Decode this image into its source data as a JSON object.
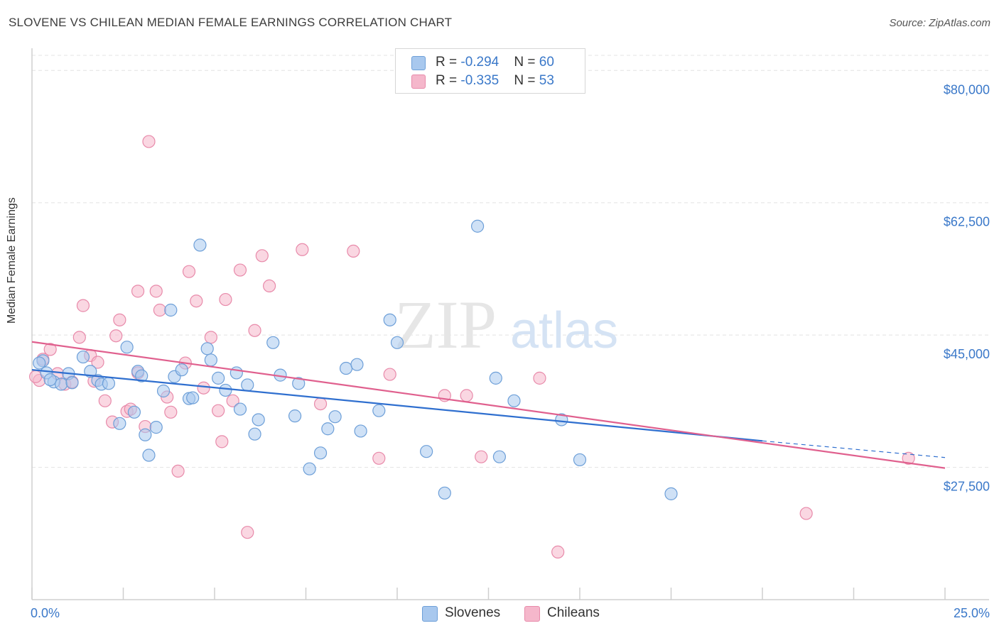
{
  "header": {
    "title": "SLOVENE VS CHILEAN MEDIAN FEMALE EARNINGS CORRELATION CHART",
    "source": "Source: ZipAtlas.com"
  },
  "watermark": {
    "zip": "ZIP",
    "atlas": "atlas"
  },
  "legend": {
    "rows": [
      {
        "r_label": "R = ",
        "r_value": "-0.294",
        "n_label": "N = ",
        "n_value": "60",
        "color": "#a8c8ee"
      },
      {
        "r_label": "R = ",
        "r_value": "-0.335",
        "n_label": "N = ",
        "n_value": "53",
        "color": "#f5b7cb"
      }
    ]
  },
  "bottom_legend": [
    {
      "label": "Slovenes",
      "color": "#a8c8ee"
    },
    {
      "label": "Chileans",
      "color": "#f5b7cb"
    }
  ],
  "colors": {
    "blue_fill": "#a8c8ee",
    "blue_stroke": "#6d9fd8",
    "blue_line": "#2f6fcf",
    "pink_fill": "#f5b7cb",
    "pink_stroke": "#e88aaa",
    "pink_line": "#e0608e",
    "axis_text": "#3a78c9",
    "grid": "#e4e4e4"
  },
  "chart_data": {
    "type": "scatter",
    "title": "SLOVENE VS CHILEAN MEDIAN FEMALE EARNINGS CORRELATION CHART",
    "xlabel": "",
    "ylabel": "Median Female Earnings",
    "xlim": [
      0,
      25
    ],
    "ylim": [
      10000,
      82000
    ],
    "x_tick_labels": [
      "0.0%",
      "25.0%"
    ],
    "y_ticks": [
      27500,
      45000,
      62500,
      80000
    ],
    "y_tick_labels": [
      "$27,500",
      "$45,000",
      "$62,500",
      "$80,000"
    ],
    "grid": true,
    "legend_position": "top-center",
    "series": [
      {
        "name": "Slovenes",
        "r": -0.294,
        "n": 60,
        "trend": {
          "x": [
            0,
            20
          ],
          "y": [
            40400,
            31000
          ],
          "dashed_to": [
            25,
            28800
          ]
        },
        "points": [
          [
            0.3,
            41600
          ],
          [
            0.4,
            40000
          ],
          [
            0.6,
            38800
          ],
          [
            0.8,
            38500
          ],
          [
            1.0,
            39900
          ],
          [
            1.1,
            38700
          ],
          [
            1.4,
            42100
          ],
          [
            1.6,
            40200
          ],
          [
            1.8,
            39000
          ],
          [
            1.9,
            38500
          ],
          [
            2.1,
            38600
          ],
          [
            2.4,
            33300
          ],
          [
            2.6,
            43400
          ],
          [
            2.8,
            34800
          ],
          [
            2.9,
            40200
          ],
          [
            3.0,
            39600
          ],
          [
            3.1,
            31800
          ],
          [
            3.2,
            29100
          ],
          [
            3.4,
            32800
          ],
          [
            3.6,
            37600
          ],
          [
            3.8,
            48300
          ],
          [
            3.9,
            39500
          ],
          [
            4.1,
            40400
          ],
          [
            4.3,
            36600
          ],
          [
            4.4,
            36700
          ],
          [
            4.6,
            56900
          ],
          [
            4.8,
            43200
          ],
          [
            4.9,
            41700
          ],
          [
            5.1,
            39300
          ],
          [
            5.3,
            37700
          ],
          [
            5.6,
            40000
          ],
          [
            5.7,
            35200
          ],
          [
            5.9,
            38400
          ],
          [
            6.1,
            31900
          ],
          [
            6.2,
            33800
          ],
          [
            6.6,
            44000
          ],
          [
            6.8,
            39700
          ],
          [
            7.2,
            34300
          ],
          [
            7.3,
            38600
          ],
          [
            7.6,
            27300
          ],
          [
            7.9,
            29400
          ],
          [
            8.1,
            32600
          ],
          [
            8.3,
            34200
          ],
          [
            8.6,
            40600
          ],
          [
            8.9,
            41100
          ],
          [
            9.0,
            32300
          ],
          [
            9.5,
            35000
          ],
          [
            9.8,
            47000
          ],
          [
            10.0,
            44000
          ],
          [
            10.8,
            29600
          ],
          [
            11.3,
            24100
          ],
          [
            12.2,
            59400
          ],
          [
            12.7,
            39300
          ],
          [
            12.8,
            28900
          ],
          [
            13.2,
            36300
          ],
          [
            14.5,
            33800
          ],
          [
            15.0,
            28500
          ],
          [
            17.5,
            24000
          ],
          [
            0.2,
            41300
          ],
          [
            0.5,
            39100
          ]
        ]
      },
      {
        "name": "Chileans",
        "r": -0.335,
        "n": 53,
        "trend": {
          "x": [
            0,
            25
          ],
          "y": [
            44100,
            27400
          ]
        },
        "points": [
          [
            0.2,
            39000
          ],
          [
            0.3,
            41800
          ],
          [
            0.5,
            43100
          ],
          [
            0.7,
            39900
          ],
          [
            0.9,
            38500
          ],
          [
            1.1,
            38800
          ],
          [
            1.3,
            44700
          ],
          [
            1.4,
            48900
          ],
          [
            1.6,
            42300
          ],
          [
            1.7,
            38900
          ],
          [
            1.8,
            41400
          ],
          [
            2.0,
            36300
          ],
          [
            2.2,
            33500
          ],
          [
            2.3,
            44900
          ],
          [
            2.4,
            47000
          ],
          [
            2.6,
            34900
          ],
          [
            2.7,
            35200
          ],
          [
            2.9,
            50800
          ],
          [
            2.9,
            40000
          ],
          [
            3.1,
            32900
          ],
          [
            3.2,
            70600
          ],
          [
            3.4,
            50800
          ],
          [
            3.5,
            48300
          ],
          [
            3.7,
            36800
          ],
          [
            3.8,
            34800
          ],
          [
            4.0,
            27000
          ],
          [
            4.2,
            41300
          ],
          [
            4.3,
            53400
          ],
          [
            4.5,
            49500
          ],
          [
            4.7,
            38000
          ],
          [
            4.9,
            44700
          ],
          [
            5.1,
            35000
          ],
          [
            5.2,
            30900
          ],
          [
            5.3,
            49700
          ],
          [
            5.5,
            36300
          ],
          [
            5.7,
            53600
          ],
          [
            5.9,
            18900
          ],
          [
            6.1,
            45600
          ],
          [
            6.3,
            55500
          ],
          [
            6.5,
            51500
          ],
          [
            7.4,
            56300
          ],
          [
            7.9,
            35900
          ],
          [
            8.8,
            56100
          ],
          [
            9.5,
            28700
          ],
          [
            9.8,
            39800
          ],
          [
            11.3,
            37000
          ],
          [
            11.9,
            37000
          ],
          [
            12.3,
            28900
          ],
          [
            13.9,
            39300
          ],
          [
            14.4,
            16300
          ],
          [
            21.2,
            21400
          ],
          [
            24.0,
            28700
          ],
          [
            0.1,
            39500
          ]
        ]
      }
    ]
  }
}
